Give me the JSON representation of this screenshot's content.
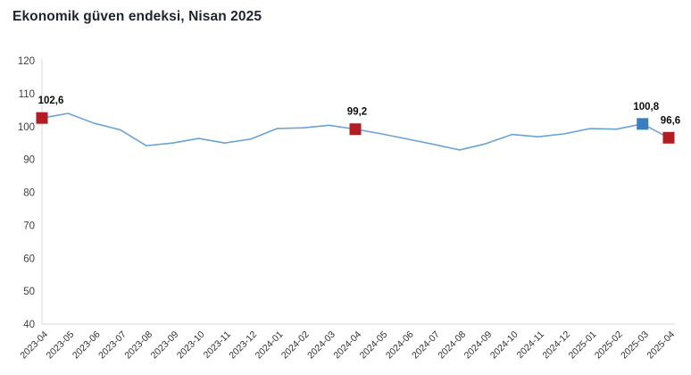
{
  "title": "Ekonomik güven endeksi, Nisan 2025",
  "chart_data": {
    "type": "line",
    "title": "Ekonomik güven endeksi, Nisan 2025",
    "xlabel": "",
    "ylabel": "",
    "ylim": [
      40,
      120
    ],
    "yticks": [
      40,
      50,
      60,
      70,
      80,
      90,
      100,
      110,
      120
    ],
    "grid": false,
    "legend": "none",
    "x": [
      "2023-04",
      "2023-05",
      "2023-06",
      "2023-07",
      "2023-08",
      "2023-09",
      "2023-10",
      "2023-11",
      "2023-12",
      "2024-01",
      "2024-02",
      "2024-03",
      "2024-04",
      "2024-05",
      "2024-06",
      "2024-07",
      "2024-08",
      "2024-09",
      "2024-10",
      "2024-11",
      "2024-12",
      "2025-01",
      "2025-02",
      "2025-03",
      "2025-04"
    ],
    "values": [
      102.6,
      104.0,
      101.0,
      99.0,
      94.2,
      95.0,
      96.4,
      95.0,
      96.2,
      99.4,
      99.6,
      100.4,
      99.2,
      97.8,
      96.2,
      94.6,
      92.9,
      94.8,
      97.6,
      96.9,
      97.8,
      99.4,
      99.2,
      100.8,
      96.6
    ],
    "line_color": "#6ba3d6",
    "axis_color": "#d8d8d8",
    "highlighted_points": [
      {
        "x": "2023-04",
        "value": 102.6,
        "label": "102,6",
        "marker_color": "#b01e24",
        "label_dx": 10
      },
      {
        "x": "2024-04",
        "value": 99.2,
        "label": "99,2",
        "marker_color": "#b01e24",
        "label_dx": 2
      },
      {
        "x": "2025-03",
        "value": 100.8,
        "label": "100,8",
        "marker_color": "#3a7ebf",
        "label_dx": 4
      },
      {
        "x": "2025-04",
        "value": 96.6,
        "label": "96,6",
        "marker_color": "#b01e24",
        "label_dx": 2
      }
    ]
  }
}
